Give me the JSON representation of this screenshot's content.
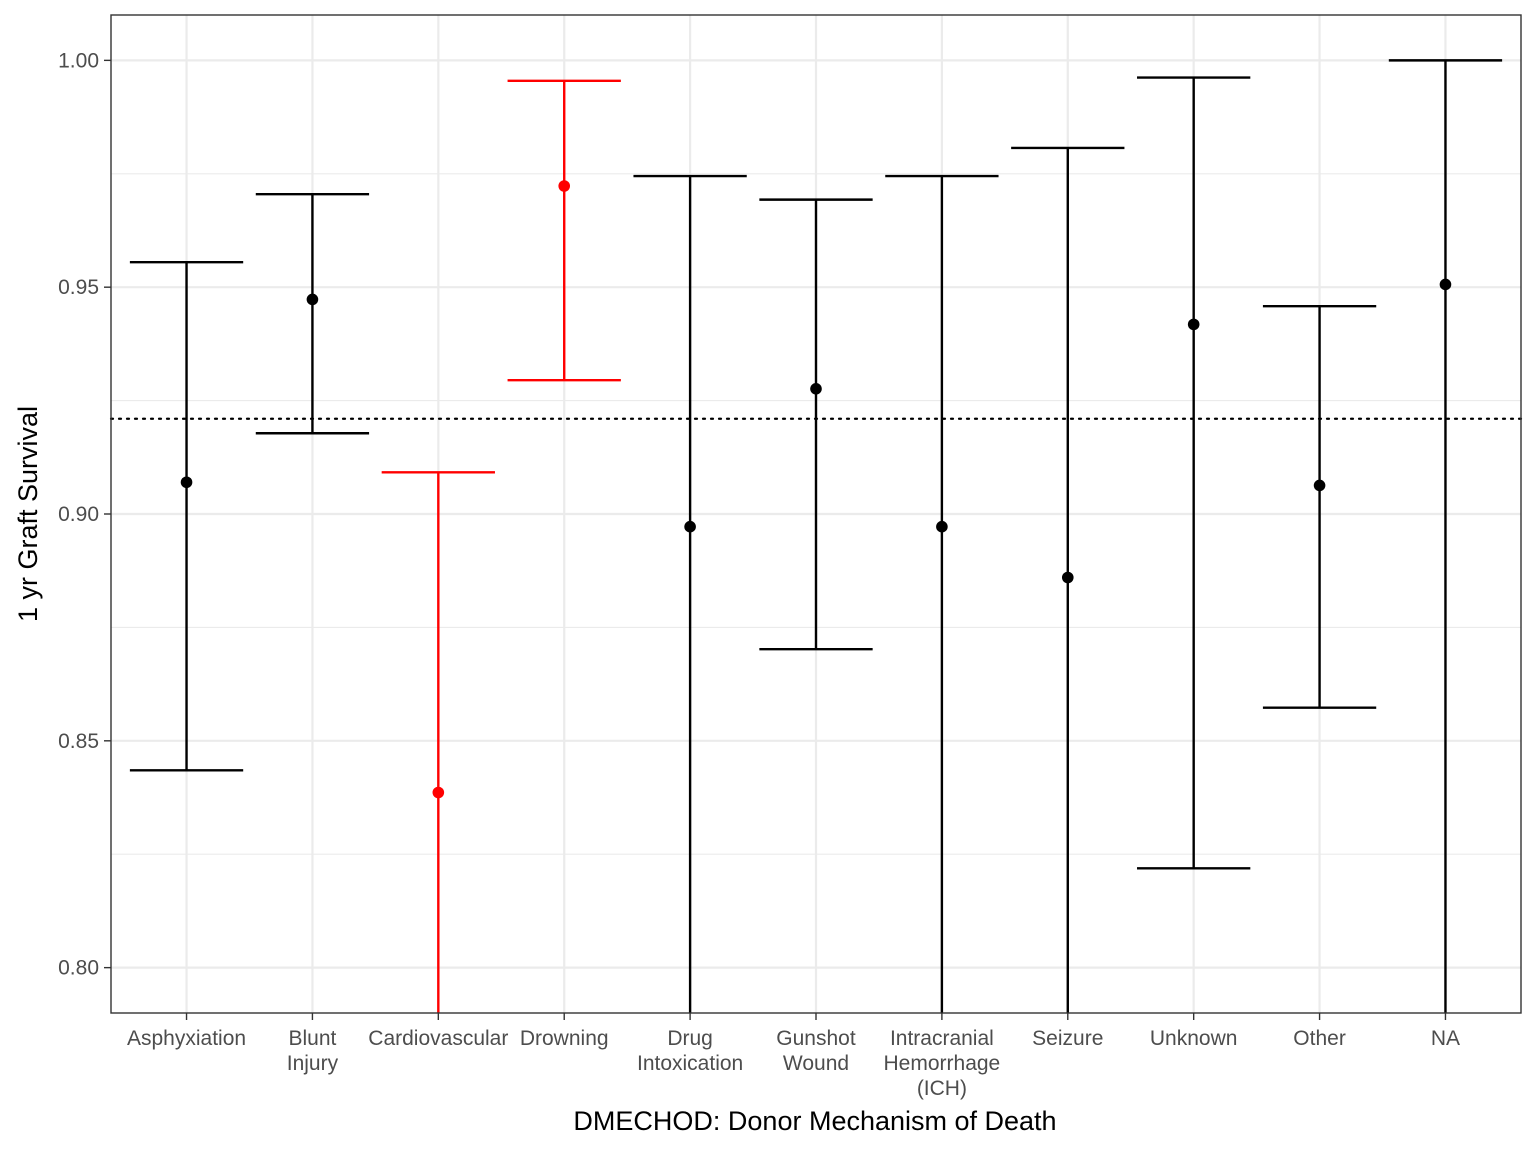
{
  "chart_data": {
    "type": "errorbar",
    "title": "",
    "xlabel": "DMECHOD: Donor Mechanism of Death",
    "ylabel": "1 yr Graft Survival",
    "ylim": [
      0.79,
      1.01
    ],
    "yticks": [
      0.8,
      0.85,
      0.9,
      0.95,
      1.0
    ],
    "ytick_labels": [
      "0.80",
      "0.85",
      "0.90",
      "0.95",
      "1.00"
    ],
    "reference_line": 0.921,
    "grid": true,
    "colors": {
      "normal": "#000000",
      "highlight": "#ff0000",
      "grid": "#ebebeb",
      "panel_border": "#333333"
    },
    "points": [
      {
        "category": "Asphyxiation",
        "label_lines": [
          "Asphyxiation"
        ],
        "estimate": 0.907,
        "lower": 0.8435,
        "upper": 0.9555,
        "highlight": false
      },
      {
        "category": "Blunt Injury",
        "label_lines": [
          "Blunt",
          "Injury"
        ],
        "estimate": 0.9473,
        "lower": 0.9178,
        "upper": 0.9705,
        "highlight": false
      },
      {
        "category": "Cardiovascular",
        "label_lines": [
          "Cardiovascular"
        ],
        "estimate": 0.8386,
        "lower": 0.79,
        "upper": 0.9092,
        "highlight": true
      },
      {
        "category": "Drowning",
        "label_lines": [
          "Drowning"
        ],
        "estimate": 0.9723,
        "lower": 0.9295,
        "upper": 0.9955,
        "highlight": true
      },
      {
        "category": "Drug Intoxication",
        "label_lines": [
          "Drug",
          "Intoxication"
        ],
        "estimate": 0.8972,
        "lower": 0.79,
        "upper": 0.9745,
        "highlight": false
      },
      {
        "category": "Gunshot Wound",
        "label_lines": [
          "Gunshot",
          "Wound"
        ],
        "estimate": 0.9276,
        "lower": 0.8702,
        "upper": 0.9693,
        "highlight": false
      },
      {
        "category": "Intracranial Hemorrhage (ICH)",
        "label_lines": [
          "Intracranial",
          "Hemorrhage",
          "(ICH)"
        ],
        "estimate": 0.8972,
        "lower": 0.79,
        "upper": 0.9745,
        "highlight": false
      },
      {
        "category": "Seizure",
        "label_lines": [
          "Seizure"
        ],
        "estimate": 0.886,
        "lower": 0.79,
        "upper": 0.9807,
        "highlight": false
      },
      {
        "category": "Unknown",
        "label_lines": [
          "Unknown"
        ],
        "estimate": 0.9418,
        "lower": 0.8219,
        "upper": 0.9962,
        "highlight": false
      },
      {
        "category": "Other",
        "label_lines": [
          "Other"
        ],
        "estimate": 0.9063,
        "lower": 0.8573,
        "upper": 0.9458,
        "highlight": false
      },
      {
        "category": "NA",
        "label_lines": [
          "NA"
        ],
        "estimate": 0.9506,
        "lower": 0.79,
        "upper": 1.0,
        "highlight": false
      }
    ]
  }
}
